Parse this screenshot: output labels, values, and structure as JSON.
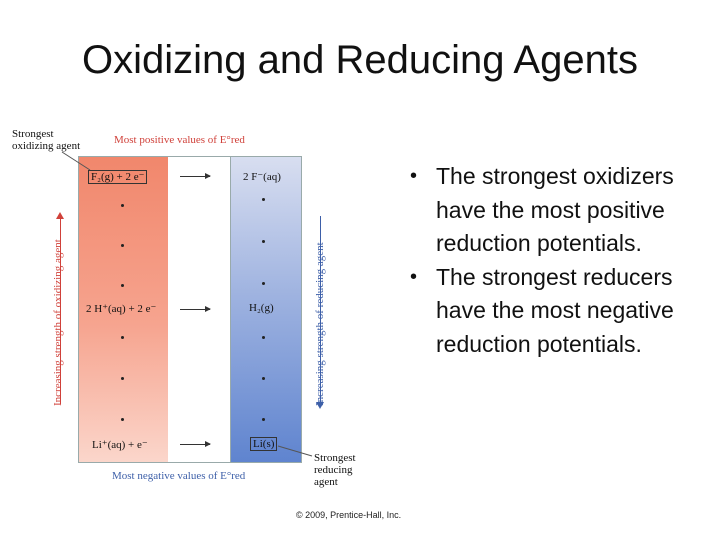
{
  "slide": {
    "title": "Oxidizing and Reducing Agents",
    "bullets": [
      "The strongest oxidizers have the most positive reduction potentials.",
      "The strongest reducers have the most negative reduction potentials."
    ],
    "copyright": "© 2009, Prentice-Hall, Inc."
  },
  "figure": {
    "top_left_label": [
      "Strongest",
      "oxidizing agent"
    ],
    "top_header": "Most positive values of E°red",
    "bottom_header": "Most negative values of E°red",
    "bottom_right_label": [
      "Strongest",
      "reducing",
      "agent"
    ],
    "left_axis_label": "Increasing strength of oxidizing agent",
    "right_axis_label": "Increasing strength of reducing agent",
    "rows": [
      {
        "oxidized": "F₂(g) + 2 e⁻",
        "reduced": "2 F⁻(aq)"
      },
      {
        "oxidized": "2 H⁺(aq) + 2 e⁻",
        "reduced": "H₂(g)"
      },
      {
        "oxidized": "Li⁺(aq) + e⁻",
        "reduced": "Li(s)"
      }
    ],
    "colors": {
      "oxidizing": "#f1876c",
      "reducing": "#5f84cf",
      "accent_red": "#d0413a",
      "accent_blue": "#3d5fa8"
    }
  }
}
